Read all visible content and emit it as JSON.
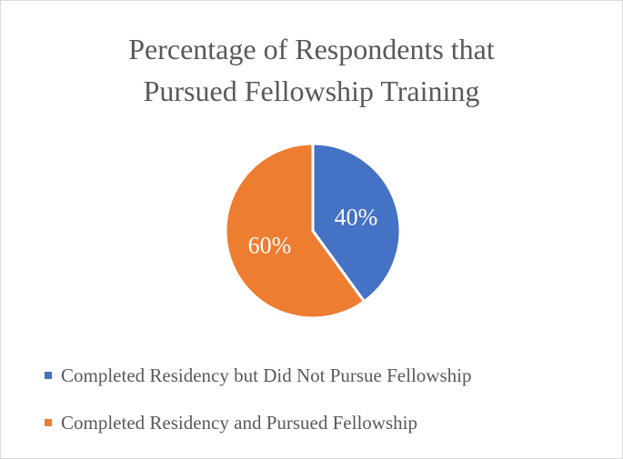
{
  "chart_data": {
    "type": "pie",
    "title": [
      "Percentage of Respondents that",
      "Pursued Fellowship Training"
    ],
    "series": [
      {
        "name": "Completed Residency but Did Not Pursue Fellowship",
        "value": 40,
        "label": "40%",
        "color": "#4472c4"
      },
      {
        "name": "Completed Residency and Pursued Fellowship",
        "value": 60,
        "label": "60%",
        "color": "#ed7d31"
      }
    ],
    "legend_position": "bottom-left",
    "data_label_color": "#ffffff"
  }
}
